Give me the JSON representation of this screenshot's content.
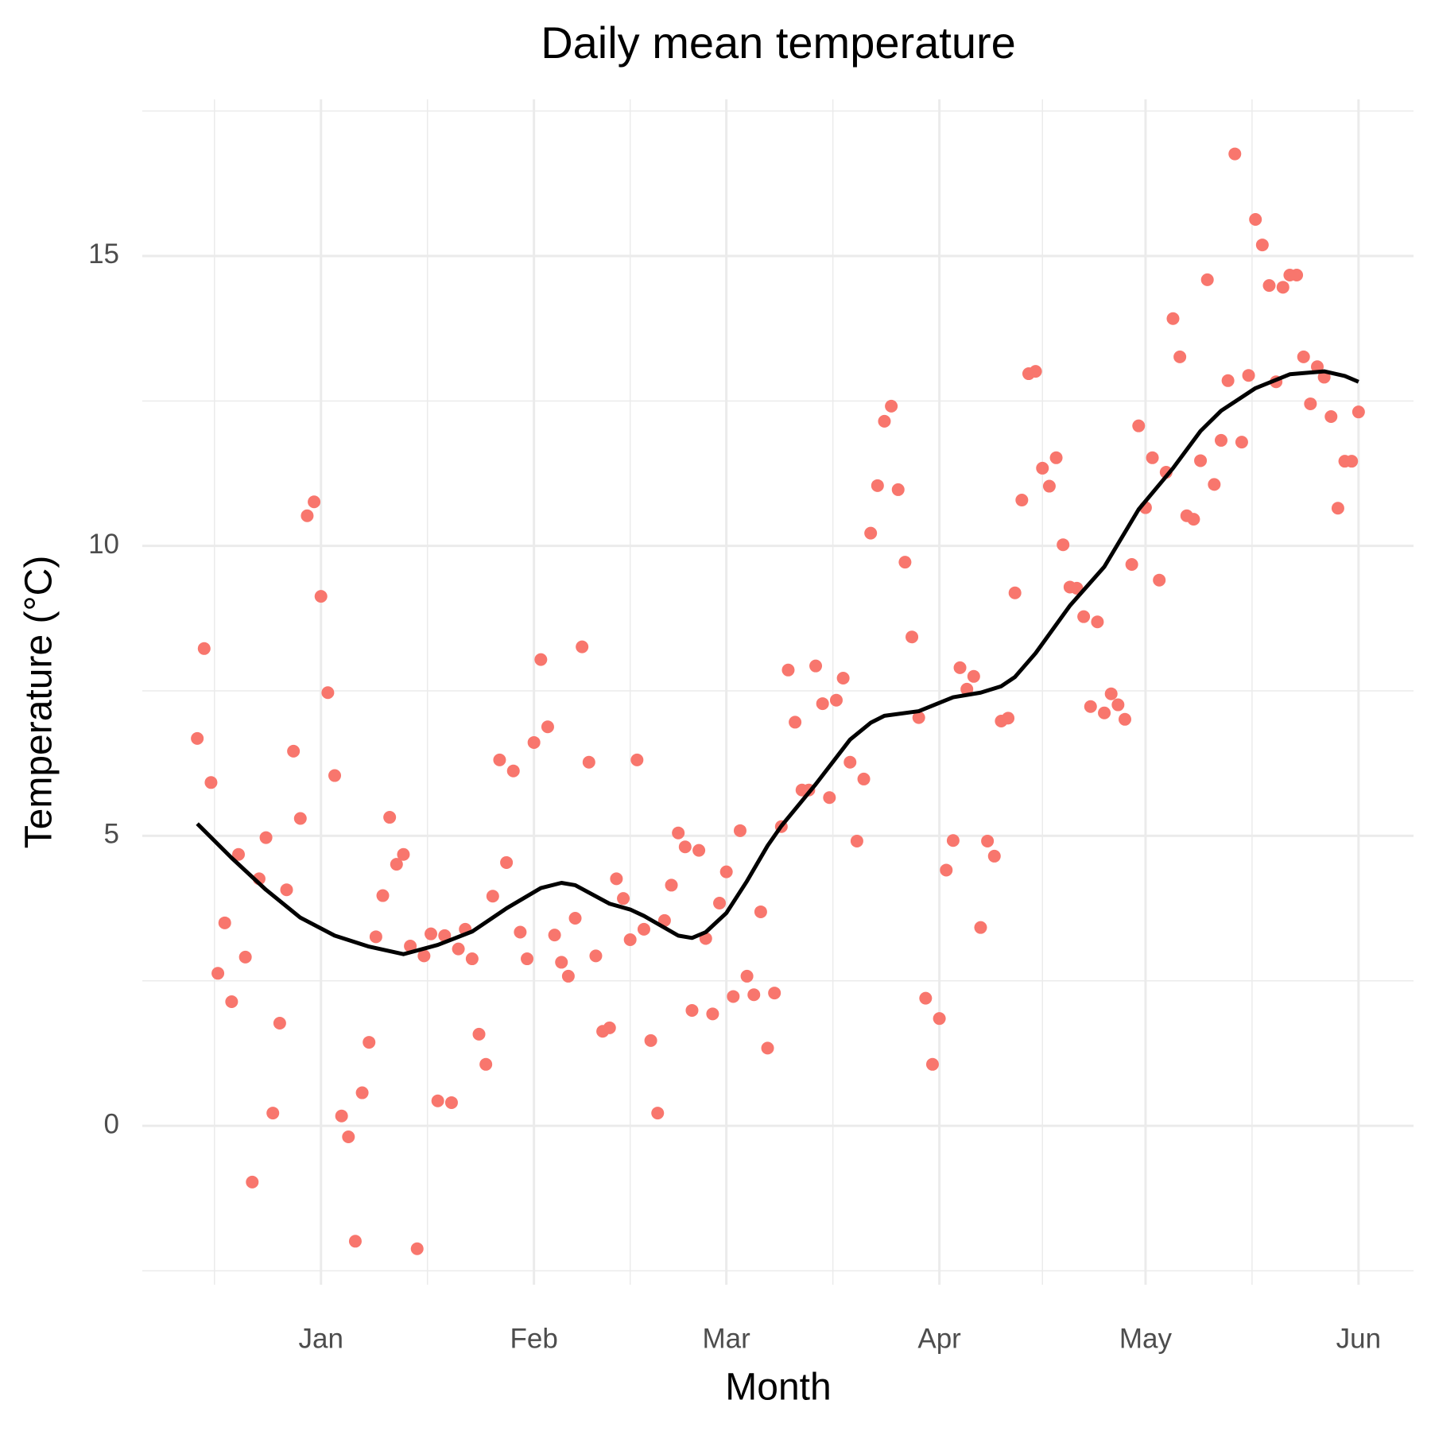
{
  "chart_data": {
    "type": "scatter",
    "title": "Daily mean temperature",
    "x_label": "Month",
    "y_label": "Temperature (°C)",
    "x": [
      -18,
      -17,
      -16,
      -15,
      -14,
      -13,
      -12,
      -11,
      -10,
      -9,
      -8,
      -7,
      -6,
      -5,
      -4,
      -3,
      -2,
      -1,
      0,
      1,
      2,
      3,
      4,
      5,
      6,
      7,
      8,
      9,
      10,
      11,
      12,
      13,
      14,
      15,
      16,
      17,
      18,
      19,
      20,
      21,
      22,
      23,
      24,
      25,
      26,
      27,
      28,
      29,
      30,
      31,
      32,
      33,
      34,
      35,
      36,
      37,
      38,
      39,
      40,
      41,
      42,
      43,
      44,
      45,
      46,
      47,
      48,
      49,
      50,
      51,
      52,
      53,
      54,
      55,
      56,
      57,
      58,
      59,
      60,
      61,
      62,
      63,
      64,
      65,
      66,
      67,
      68,
      69,
      70,
      71,
      72,
      73,
      74,
      75,
      76,
      77,
      78,
      79,
      80,
      81,
      82,
      83,
      84,
      85,
      86,
      87,
      88,
      89,
      90,
      91,
      92,
      93,
      94,
      95,
      96,
      97,
      98,
      99,
      100,
      101,
      102,
      103,
      104,
      105,
      106,
      107,
      108,
      109,
      110,
      111,
      112,
      113,
      114,
      115,
      116,
      117,
      118,
      119,
      120,
      121,
      122,
      123,
      124,
      125,
      126,
      127,
      128,
      129,
      130,
      131,
      132,
      133,
      134,
      135,
      136,
      137,
      138,
      139,
      140,
      141,
      142,
      143,
      144,
      145,
      146,
      147,
      148,
      149,
      150,
      151
    ],
    "values": [
      6.68,
      8.23,
      5.92,
      2.63,
      3.5,
      2.14,
      4.68,
      2.91,
      -0.97,
      4.26,
      4.97,
      0.22,
      1.77,
      4.07,
      6.46,
      5.3,
      10.52,
      10.76,
      9.13,
      7.47,
      6.04,
      0.17,
      -0.19,
      -1.99,
      0.57,
      1.44,
      3.26,
      3.97,
      5.32,
      4.51,
      4.68,
      3.1,
      -2.12,
      2.93,
      3.31,
      0.43,
      3.28,
      0.4,
      3.05,
      3.39,
      2.88,
      1.58,
      1.06,
      3.96,
      6.31,
      4.54,
      6.12,
      3.34,
      2.88,
      6.61,
      8.04,
      6.88,
      3.29,
      2.82,
      2.58,
      3.58,
      8.26,
      6.27,
      2.93,
      1.63,
      1.69,
      4.26,
      3.92,
      3.21,
      6.31,
      3.39,
      1.47,
      0.22,
      3.54,
      4.15,
      5.05,
      4.81,
      1.99,
      4.75,
      3.23,
      1.93,
      3.84,
      4.38,
      2.23,
      5.09,
      2.58,
      2.26,
      3.69,
      1.34,
      2.29,
      5.16,
      7.86,
      6.96,
      5.79,
      5.79,
      7.93,
      7.28,
      5.66,
      7.34,
      7.72,
      6.27,
      4.91,
      5.98,
      10.22,
      11.04,
      12.15,
      12.41,
      10.97,
      9.72,
      8.43,
      7.04,
      2.2,
      1.06,
      1.85,
      4.41,
      4.92,
      7.9,
      7.53,
      7.75,
      3.42,
      4.91,
      4.65,
      6.98,
      7.03,
      9.19,
      10.79,
      12.97,
      13.01,
      11.34,
      11.03,
      11.52,
      10.02,
      9.29,
      9.27,
      8.78,
      7.23,
      8.69,
      7.12,
      7.45,
      7.26,
      7.01,
      9.68,
      12.07,
      10.66,
      11.52,
      9.41,
      11.27,
      13.92,
      13.26,
      10.52,
      10.46,
      11.47,
      14.59,
      11.06,
      11.82,
      12.85,
      16.76,
      11.79,
      12.94,
      15.63,
      15.19,
      14.49,
      12.83,
      14.46,
      14.67,
      14.67,
      13.26,
      12.45,
      13.09,
      12.91,
      12.23,
      10.65,
      11.46,
      11.46,
      12.31
    ],
    "color": "#f8766d",
    "smooth": {
      "color": "#000000",
      "x": [
        -18,
        -13,
        -8,
        -3,
        2,
        7,
        12,
        17,
        22,
        27,
        32,
        35,
        37,
        42,
        45,
        47,
        52,
        54,
        56,
        59,
        62,
        65,
        67,
        72,
        77,
        80,
        82,
        87,
        92,
        96,
        99,
        101,
        104,
        109,
        114,
        119,
        124,
        128,
        131,
        136,
        141,
        146,
        149,
        151
      ],
      "values": [
        5.21,
        4.62,
        4.07,
        3.59,
        3.28,
        3.09,
        2.96,
        3.12,
        3.35,
        3.75,
        4.1,
        4.19,
        4.15,
        3.83,
        3.73,
        3.62,
        3.28,
        3.24,
        3.34,
        3.67,
        4.22,
        4.83,
        5.17,
        5.89,
        6.66,
        6.95,
        7.07,
        7.15,
        7.39,
        7.47,
        7.58,
        7.74,
        8.15,
        8.97,
        9.64,
        10.63,
        11.34,
        11.98,
        12.33,
        12.72,
        12.96,
        13.01,
        12.93,
        12.83
      ]
    },
    "xlim": [
      -26,
      159
    ],
    "xticks": [
      {
        "value": 0,
        "label": "Jan"
      },
      {
        "value": 31,
        "label": "Feb"
      },
      {
        "value": 59,
        "label": "Mar"
      },
      {
        "value": 90,
        "label": "Apr"
      },
      {
        "value": 120,
        "label": "May"
      },
      {
        "value": 151,
        "label": "Jun"
      }
    ],
    "ylim": [
      -2.74,
      17.7
    ],
    "yticks": [
      0,
      5,
      10,
      15
    ],
    "grid": true
  }
}
